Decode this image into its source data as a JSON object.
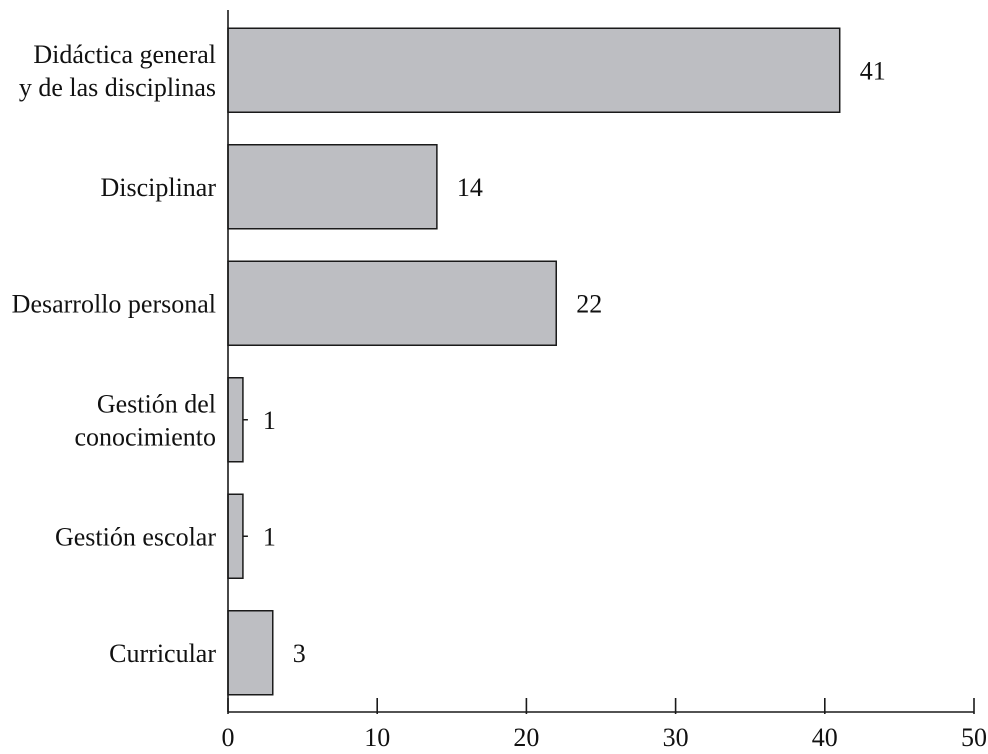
{
  "chart_data": {
    "type": "bar",
    "orientation": "horizontal",
    "categories": [
      [
        "Didáctica general",
        "y de las disciplinas"
      ],
      [
        "Disciplinar"
      ],
      [
        "Desarrollo personal"
      ],
      [
        "Gestión del",
        "conocimiento"
      ],
      [
        "Gestión escolar"
      ],
      [
        "Curricular"
      ]
    ],
    "values": [
      41,
      14,
      22,
      1,
      1,
      3
    ],
    "value_labels": [
      "41",
      "14",
      "22",
      "1",
      "1",
      "3"
    ],
    "xlim": [
      0,
      50
    ],
    "xticks": [
      0,
      10,
      20,
      30,
      40,
      50
    ],
    "xtick_labels": [
      "0",
      "10",
      "20",
      "30",
      "40",
      "50"
    ],
    "title": "",
    "xlabel": "",
    "ylabel": "",
    "grid": false,
    "legend": "none",
    "colors": {
      "bar_fill": "#bdbec2",
      "bar_stroke": "#1a1a1a",
      "axis": "#1a1a1a",
      "text": "#111111"
    }
  }
}
